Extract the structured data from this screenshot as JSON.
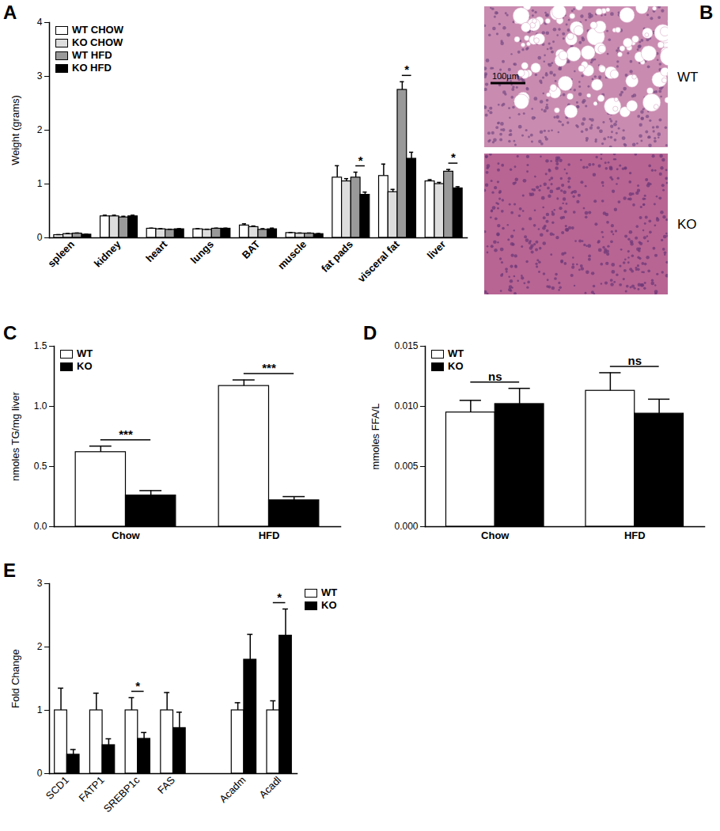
{
  "chart_data": [
    {
      "type": "bar",
      "title": "A",
      "y_label": "Weight (grams)",
      "categories": [
        "spleen",
        "kidney",
        "heart",
        "lungs",
        "BAT",
        "muscle",
        "fat pads",
        "visceral fat",
        "liver"
      ],
      "ylim": [
        0,
        4
      ],
      "yticks": [
        0,
        1,
        2,
        3,
        4
      ],
      "legend": "top-left",
      "series": [
        {
          "name": "WT CHOW",
          "color": "#ffffff",
          "values": [
            0.05,
            0.4,
            0.17,
            0.16,
            0.23,
            0.09,
            1.12,
            1.15,
            1.05
          ],
          "errors": [
            0.01,
            0.02,
            0.01,
            0.01,
            0.03,
            0.01,
            0.22,
            0.22,
            0.03
          ]
        },
        {
          "name": "KO CHOW",
          "color": "#dddddd",
          "values": [
            0.07,
            0.4,
            0.16,
            0.15,
            0.2,
            0.08,
            1.05,
            0.85,
            1.0
          ],
          "errors": [
            0.01,
            0.02,
            0.01,
            0.01,
            0.02,
            0.01,
            0.05,
            0.05,
            0.03
          ]
        },
        {
          "name": "WT HFD",
          "color": "#999999",
          "values": [
            0.08,
            0.38,
            0.15,
            0.17,
            0.15,
            0.08,
            1.12,
            2.75,
            1.23
          ],
          "errors": [
            0.01,
            0.02,
            0.01,
            0.01,
            0.02,
            0.01,
            0.1,
            0.15,
            0.04
          ]
        },
        {
          "name": "KO HFD",
          "color": "#000000",
          "values": [
            0.06,
            0.4,
            0.16,
            0.17,
            0.16,
            0.07,
            0.8,
            1.47,
            0.92
          ],
          "errors": [
            0.01,
            0.02,
            0.01,
            0.01,
            0.02,
            0.01,
            0.05,
            0.12,
            0.03
          ]
        }
      ],
      "annotations": [
        {
          "category": "fat pads",
          "series": [
            "WT HFD",
            "KO HFD"
          ],
          "text": "*"
        },
        {
          "category": "visceral fat",
          "series": [
            "WT HFD",
            "KO HFD"
          ],
          "text": "*"
        },
        {
          "category": "liver",
          "series": [
            "WT HFD",
            "KO HFD"
          ],
          "text": "*"
        }
      ]
    },
    {
      "type": "image",
      "title": "B",
      "images": [
        "WT",
        "KO"
      ],
      "scale_bar": "100µm"
    },
    {
      "type": "bar",
      "title": "C",
      "y_label": "nmoles TG/mg liver",
      "categories": [
        "Chow",
        "HFD"
      ],
      "ylim": [
        0,
        1.5
      ],
      "yticks": [
        {
          "value": 0,
          "label": "0.0"
        },
        {
          "value": 0.5,
          "label": "0.5"
        },
        {
          "value": 1,
          "label": "1.0"
        },
        {
          "value": 1.5,
          "label": "1.5"
        }
      ],
      "legend": "top-left",
      "series": [
        {
          "name": "WT",
          "color": "#ffffff",
          "values": [
            0.62,
            1.17
          ],
          "errors": [
            0.05,
            0.05
          ]
        },
        {
          "name": "KO",
          "color": "#000000",
          "values": [
            0.26,
            0.22
          ],
          "errors": [
            0.04,
            0.03
          ]
        }
      ],
      "annotations": [
        {
          "category": "Chow",
          "series": [
            "WT",
            "KO"
          ],
          "text": "***"
        },
        {
          "category": "HFD",
          "series": [
            "WT",
            "KO"
          ],
          "text": "***"
        }
      ]
    },
    {
      "type": "bar",
      "title": "D",
      "y_label": "mmoles FFA/L",
      "categories": [
        "Chow",
        "HFD"
      ],
      "ylim": [
        0,
        0.015
      ],
      "yticks": [
        {
          "value": 0,
          "label": "0.000"
        },
        {
          "value": 0.005,
          "label": "0.005"
        },
        {
          "value": 0.01,
          "label": "0.010"
        },
        {
          "value": 0.015,
          "label": "0.015"
        }
      ],
      "legend": "top-left",
      "series": [
        {
          "name": "WT",
          "color": "#ffffff",
          "values": [
            0.0095,
            0.0113
          ],
          "errors": [
            0.001,
            0.0015
          ]
        },
        {
          "name": "KO",
          "color": "#000000",
          "values": [
            0.0102,
            0.0094
          ],
          "errors": [
            0.0013,
            0.0012
          ]
        }
      ],
      "annotations": [
        {
          "category": "Chow",
          "series": [
            "WT",
            "KO"
          ],
          "text": "ns"
        },
        {
          "category": "HFD",
          "series": [
            "WT",
            "KO"
          ],
          "text": "ns"
        }
      ]
    },
    {
      "type": "bar",
      "title": "E",
      "y_label": "Fold Change",
      "categories": [
        "SCD1",
        "FATP1",
        "SREBP1c",
        "FAS",
        null,
        "Acadm",
        "Acadl"
      ],
      "ylim": [
        0,
        3
      ],
      "yticks": [
        0,
        1,
        2,
        3
      ],
      "legend": "right",
      "series": [
        {
          "name": "WT",
          "color": "#ffffff",
          "values": [
            1,
            1,
            1,
            1,
            null,
            1,
            1
          ],
          "errors": [
            0.35,
            0.27,
            0.2,
            0.28,
            null,
            0.12,
            0.15
          ]
        },
        {
          "name": "KO",
          "color": "#000000",
          "values": [
            0.3,
            0.45,
            0.55,
            0.72,
            null,
            1.8,
            2.18
          ],
          "errors": [
            0.08,
            0.1,
            0.1,
            0.25,
            null,
            0.4,
            0.42
          ]
        }
      ],
      "annotations": [
        {
          "category": "SREBP1c",
          "series": [
            "WT",
            "KO"
          ],
          "text": "*"
        },
        {
          "category": "Acadl",
          "series": [
            "WT",
            "KO"
          ],
          "text": "*"
        }
      ]
    }
  ]
}
